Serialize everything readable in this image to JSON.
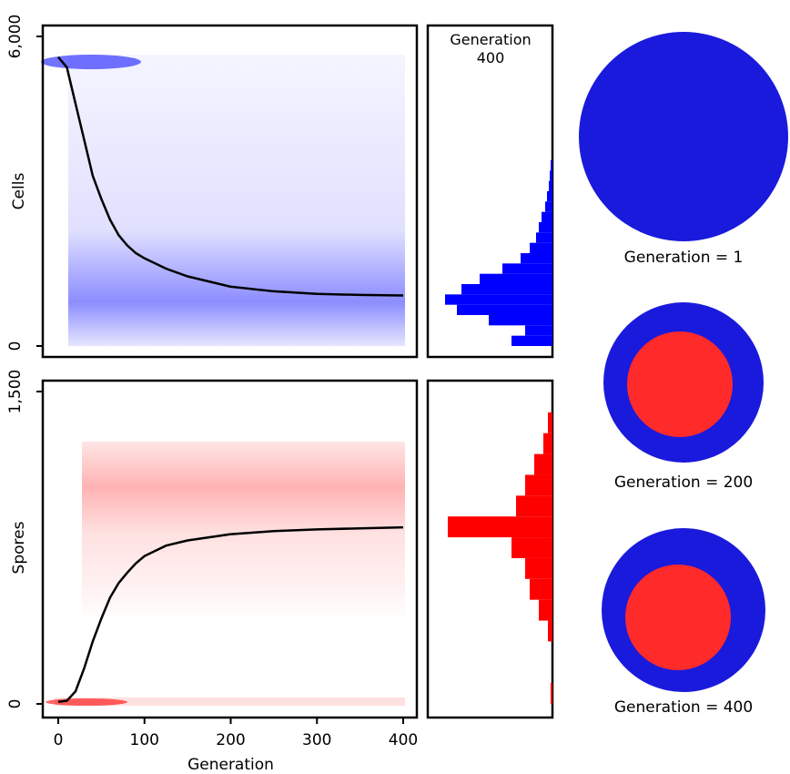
{
  "chart_data": [
    {
      "type": "line",
      "ylabel": "Cells",
      "x": [
        0,
        10,
        20,
        30,
        40,
        50,
        60,
        70,
        80,
        90,
        100,
        125,
        150,
        200,
        250,
        300,
        350,
        400
      ],
      "series": [
        {
          "color": "#000000",
          "values": [
            5600,
            5400,
            4700,
            4000,
            3300,
            2850,
            2450,
            2150,
            1950,
            1800,
            1700,
            1500,
            1350,
            1150,
            1060,
            1010,
            990,
            980
          ]
        }
      ],
      "cloud_color": "#0000ff",
      "xlim": [
        0,
        400
      ],
      "ylim": [
        0,
        6000
      ],
      "yticks": [
        0,
        {
          "value": 6000,
          "label": "6,000"
        }
      ]
    },
    {
      "type": "histogram",
      "title": "Generation 400",
      "orientation": "horizontal",
      "color": "#0000ff",
      "bins": [
        0,
        200,
        400,
        600,
        800,
        1000,
        1200,
        1400,
        1600,
        1800,
        2000,
        2200,
        2400,
        2600,
        2800,
        3000,
        3200,
        3400,
        3600
      ],
      "counts": [
        45,
        30,
        70,
        105,
        118,
        100,
        80,
        55,
        35,
        25,
        18,
        15,
        12,
        8,
        6,
        4,
        3,
        2
      ],
      "xlim": [
        0,
        137
      ],
      "ylim": [
        0,
        6000
      ]
    },
    {
      "type": "line",
      "ylabel": "Spores",
      "xlabel": "Generation",
      "x": [
        0,
        10,
        20,
        30,
        40,
        50,
        60,
        70,
        80,
        90,
        100,
        125,
        150,
        200,
        250,
        300,
        350,
        400
      ],
      "series": [
        {
          "color": "#000000",
          "values": [
            10,
            15,
            60,
            170,
            300,
            410,
            510,
            580,
            630,
            675,
            710,
            760,
            785,
            815,
            830,
            838,
            843,
            848
          ]
        }
      ],
      "cloud_color": "#ff0000",
      "xlim": [
        0,
        400
      ],
      "xticks": [
        0,
        100,
        200,
        300,
        400
      ],
      "ylim": [
        0,
        1500
      ],
      "yticks": [
        0,
        {
          "value": 1500,
          "label": "1,500"
        }
      ]
    },
    {
      "type": "histogram",
      "orientation": "horizontal",
      "color": "#ff0000",
      "bins": [
        0,
        100,
        200,
        300,
        400,
        500,
        600,
        700,
        800,
        900,
        1000,
        1100,
        1200,
        1300,
        1400
      ],
      "counts": [
        2,
        0,
        0,
        5,
        15,
        25,
        30,
        45,
        115,
        40,
        30,
        20,
        10,
        5
      ],
      "xlim": [
        0,
        137
      ],
      "ylim": [
        0,
        1500
      ]
    }
  ],
  "images": [
    {
      "label": "Generation = 1"
    },
    {
      "label": "Generation = 200"
    },
    {
      "label": "Generation = 400"
    }
  ]
}
